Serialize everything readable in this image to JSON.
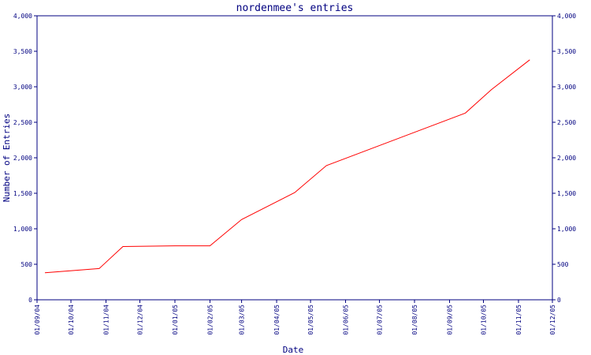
{
  "chart_data": {
    "type": "line",
    "title": "nordenmee's entries",
    "xlabel": "Date",
    "ylabel": "Number of Entries",
    "ylim": [
      0,
      4000
    ],
    "y_ticks": [
      0,
      500,
      1000,
      1500,
      2000,
      2500,
      3000,
      3500,
      4000
    ],
    "y_tick_labels": [
      "0",
      "500",
      "1,000",
      "1,500",
      "2,000",
      "2,500",
      "3,000",
      "3,500",
      "4,000"
    ],
    "x_ticks": [
      "2004-09-01",
      "2004-10-01",
      "2004-11-01",
      "2004-12-01",
      "2005-01-01",
      "2005-02-01",
      "2005-03-01",
      "2005-04-01",
      "2005-05-01",
      "2005-06-01",
      "2005-07-01",
      "2005-08-01",
      "2005-09-01",
      "2005-10-01",
      "2005-11-01",
      "2005-12-01"
    ],
    "x_tick_labels": [
      "01/09/04",
      "01/10/04",
      "01/11/04",
      "01/12/04",
      "01/01/05",
      "01/02/05",
      "01/03/05",
      "01/04/05",
      "01/05/05",
      "01/06/05",
      "01/07/05",
      "01/08/05",
      "01/09/05",
      "01/10/05",
      "01/11/05",
      "01/12/05"
    ],
    "xlim": [
      "2004-09-01",
      "2005-12-01"
    ],
    "grid": false,
    "colors": {
      "line": "#ff0000",
      "axis": "#000080",
      "text": "#000080"
    },
    "series": [
      {
        "x": [
          "2004-09-08",
          "2004-10-26",
          "2004-11-16",
          "2005-01-01",
          "2005-02-01",
          "2005-03-01",
          "2005-04-17",
          "2005-05-15",
          "2005-09-15",
          "2005-10-08",
          "2005-11-11"
        ],
        "values": [
          380,
          440,
          750,
          760,
          760,
          1130,
          1510,
          1890,
          2630,
          2960,
          3380
        ]
      }
    ]
  }
}
